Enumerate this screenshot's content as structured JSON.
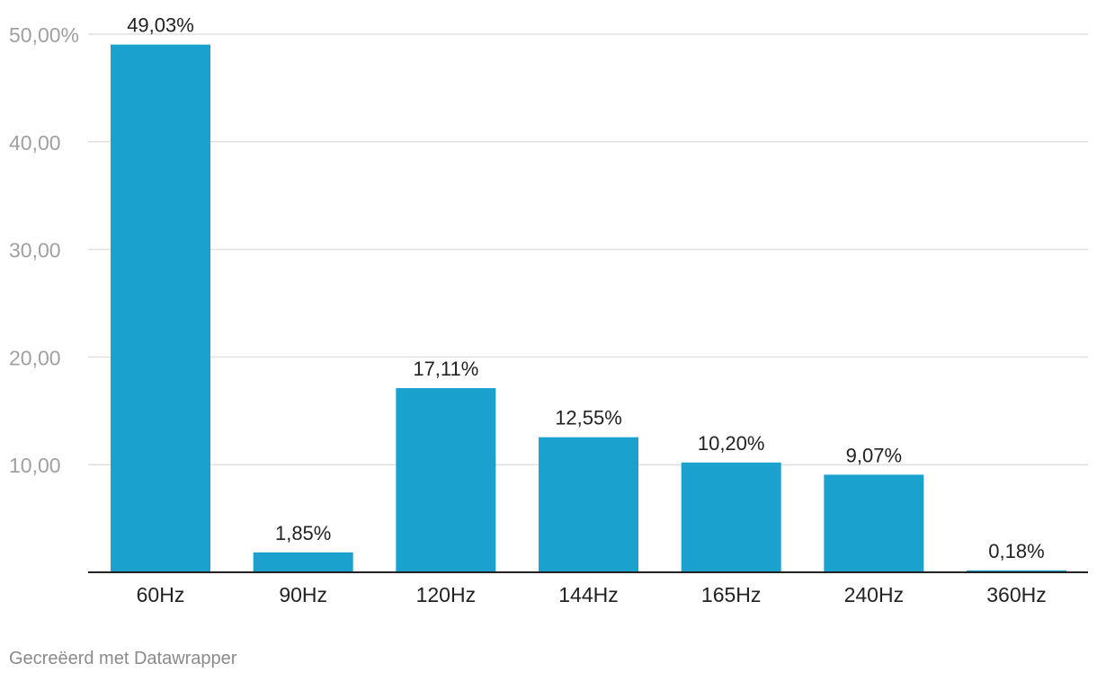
{
  "chart_data": {
    "type": "bar",
    "categories": [
      "60Hz",
      "90Hz",
      "120Hz",
      "144Hz",
      "165Hz",
      "240Hz",
      "360Hz"
    ],
    "values": [
      49.03,
      1.85,
      17.11,
      12.55,
      10.2,
      9.07,
      0.18
    ],
    "data_labels": [
      "49,03%",
      "1,85%",
      "17,11%",
      "12,55%",
      "10,20%",
      "9,07%",
      "0,18%"
    ],
    "y_ticks": [
      {
        "value": 50,
        "label": "50,00%"
      },
      {
        "value": 40,
        "label": "40,00"
      },
      {
        "value": 30,
        "label": "30,00"
      },
      {
        "value": 20,
        "label": "20,00"
      },
      {
        "value": 10,
        "label": "10,00"
      }
    ],
    "ylim": [
      0,
      50
    ],
    "grid": true,
    "bar_color": "#1aa1ce",
    "title": "",
    "xlabel": "",
    "ylabel": ""
  },
  "footer": {
    "credit": "Gecreëerd met Datawrapper"
  }
}
